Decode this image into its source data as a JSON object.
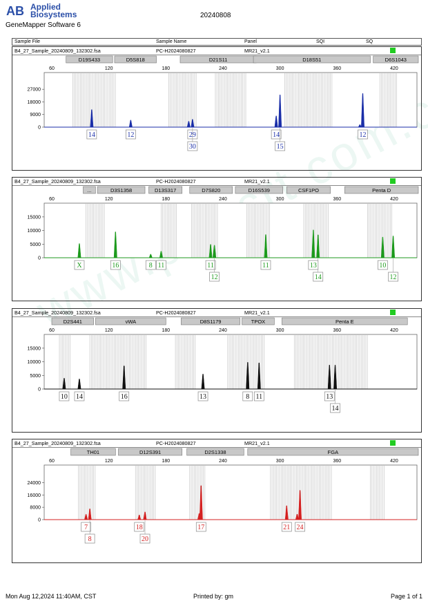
{
  "brand": {
    "logo_text": "AB",
    "name_line1": "Applied",
    "name_line2": "Biosystems",
    "software": "GeneMapper Software 6"
  },
  "run_date": "20240808",
  "columns": {
    "sample_file": "Sample File",
    "sample_name": "Sample Name",
    "panel": "Panel",
    "sqi": "SQI",
    "sq": "SQ"
  },
  "watermark": "www.pro-crt.com.cn",
  "footer": {
    "date": "Mon Aug 12,2024 11:40AM, CST",
    "printed_by": "Printed by: gm",
    "page": "Page 1 of 1"
  },
  "colors": {
    "blue": "#1a2ea8",
    "green": "#1c9a1c",
    "black": "#111111",
    "red": "#d42020",
    "sq_box": "#22cc22"
  },
  "chart_data": [
    {
      "type": "line",
      "info": {
        "sample_file": "B4_27_Sample_20240809_132302.fsa",
        "sample_name": "PC-H2024080827",
        "panel": "MR21_v2.1"
      },
      "dye": "blue",
      "xlim": [
        52,
        444
      ],
      "xticks": [
        "60",
        "120",
        "180",
        "240",
        "300",
        "360",
        "420"
      ],
      "ylim": [
        0,
        33000
      ],
      "yticks": [
        "0",
        "9000",
        "18000",
        "27000"
      ],
      "markers": [
        {
          "label": "D19S433",
          "x1": 75,
          "x2": 124
        },
        {
          "label": "D5S818",
          "x1": 126,
          "x2": 170
        },
        {
          "label": "D21S11",
          "x1": 195,
          "x2": 275
        },
        {
          "label": "D18S51",
          "x1": 272,
          "x2": 395
        },
        {
          "label": "D6S1043",
          "x1": 398,
          "x2": 454
        }
      ],
      "bins": [
        [
          82,
          127
        ],
        [
          183,
          212
        ],
        [
          232,
          265
        ],
        [
          305,
          355
        ],
        [
          405,
          424
        ]
      ],
      "peaks": [
        {
          "x": 102,
          "y": 12500
        },
        {
          "x": 143,
          "y": 5000
        },
        {
          "x": 204,
          "y": 4200
        },
        {
          "x": 208,
          "y": 5600
        },
        {
          "x": 296,
          "y": 8000
        },
        {
          "x": 300,
          "y": 23000
        },
        {
          "x": 387,
          "y": 24000
        },
        {
          "x": 384,
          "y": 1800
        }
      ],
      "alleles": [
        {
          "text": "14",
          "x": 102,
          "row": 0
        },
        {
          "text": "12",
          "x": 143,
          "row": 0
        },
        {
          "text": "29",
          "x": 208,
          "row": 0
        },
        {
          "text": "30",
          "x": 208,
          "row": 1
        },
        {
          "text": "14",
          "x": 296,
          "row": 0
        },
        {
          "text": "15",
          "x": 300,
          "row": 1
        },
        {
          "text": "12",
          "x": 387,
          "row": 0
        }
      ]
    },
    {
      "type": "line",
      "info": {
        "sample_file": "B4_27_Sample_20240809_132302.fsa",
        "sample_name": "PC-H2024080827",
        "panel": "MR21_v2.1"
      },
      "dye": "green",
      "xlim": [
        52,
        444
      ],
      "xticks": [
        "60",
        "120",
        "180",
        "240",
        "300",
        "360",
        "420"
      ],
      "ylim": [
        0,
        17000
      ],
      "yticks": [
        "0",
        "5000",
        "10000",
        "15000"
      ],
      "markers": [
        {
          "label": "...",
          "x1": 93,
          "x2": 106
        },
        {
          "label": "D3S1358",
          "x1": 108,
          "x2": 158
        },
        {
          "label": "D13S317",
          "x1": 162,
          "x2": 197
        },
        {
          "label": "D7S820",
          "x1": 205,
          "x2": 250
        },
        {
          "label": "D16S539",
          "x1": 253,
          "x2": 303
        },
        {
          "label": "CSF1PO",
          "x1": 307,
          "x2": 353
        },
        {
          "label": "Penta D",
          "x1": 368,
          "x2": 454
        }
      ],
      "bins": [
        [
          96,
          116
        ],
        [
          175,
          192
        ],
        [
          207,
          235
        ],
        [
          265,
          290
        ],
        [
          325,
          352
        ],
        [
          392,
          418
        ]
      ],
      "peaks": [
        {
          "x": 89,
          "y": 5200
        },
        {
          "x": 127,
          "y": 9500
        },
        {
          "x": 164,
          "y": 1300
        },
        {
          "x": 175,
          "y": 2400
        },
        {
          "x": 227,
          "y": 4900
        },
        {
          "x": 231,
          "y": 4600
        },
        {
          "x": 285,
          "y": 8500
        },
        {
          "x": 335,
          "y": 10200
        },
        {
          "x": 340,
          "y": 8400
        },
        {
          "x": 408,
          "y": 7600
        },
        {
          "x": 419,
          "y": 8000
        }
      ],
      "alleles": [
        {
          "text": "X",
          "x": 89,
          "row": 0
        },
        {
          "text": "16",
          "x": 127,
          "row": 0
        },
        {
          "text": "8",
          "x": 164,
          "row": 0
        },
        {
          "text": "11",
          "x": 175,
          "row": 0
        },
        {
          "text": "11",
          "x": 227,
          "row": 0
        },
        {
          "text": "12",
          "x": 231,
          "row": 1
        },
        {
          "text": "11",
          "x": 285,
          "row": 0
        },
        {
          "text": "13",
          "x": 335,
          "row": 0
        },
        {
          "text": "14",
          "x": 340,
          "row": 1
        },
        {
          "text": "10",
          "x": 408,
          "row": 0
        },
        {
          "text": "12",
          "x": 419,
          "row": 1
        }
      ]
    },
    {
      "type": "line",
      "info": {
        "sample_file": "B4_27_Sample_20240809_132302.fsa",
        "sample_name": "PC-H2024080827",
        "panel": "MR21_v2.1"
      },
      "dye": "black",
      "xlim": [
        52,
        444
      ],
      "xticks": [
        "60",
        "120",
        "180",
        "240",
        "300",
        "360",
        "420"
      ],
      "ylim": [
        0,
        17000
      ],
      "yticks": [
        "0",
        "5000",
        "10000",
        "15000"
      ],
      "markers": [
        {
          "label": "D2S441",
          "x1": 60,
          "x2": 104
        },
        {
          "label": "vWA",
          "x1": 106,
          "x2": 180
        },
        {
          "label": "D8S1179",
          "x1": 196,
          "x2": 258
        },
        {
          "label": "TPOX",
          "x1": 260,
          "x2": 294
        },
        {
          "label": "Penta E",
          "x1": 302,
          "x2": 434
        }
      ],
      "bins": [
        [
          68,
          80
        ],
        [
          100,
          160
        ],
        [
          190,
          212
        ],
        [
          245,
          285
        ],
        [
          315,
          392
        ]
      ],
      "peaks": [
        {
          "x": 73,
          "y": 4000
        },
        {
          "x": 89,
          "y": 3700
        },
        {
          "x": 136,
          "y": 8500
        },
        {
          "x": 219,
          "y": 5500
        },
        {
          "x": 266,
          "y": 9800
        },
        {
          "x": 278,
          "y": 9600
        },
        {
          "x": 352,
          "y": 8800
        },
        {
          "x": 358,
          "y": 8800
        }
      ],
      "alleles": [
        {
          "text": "10",
          "x": 73,
          "row": 0
        },
        {
          "text": "14",
          "x": 89,
          "row": 0
        },
        {
          "text": "16",
          "x": 136,
          "row": 0
        },
        {
          "text": "13",
          "x": 219,
          "row": 0
        },
        {
          "text": "8",
          "x": 266,
          "row": 0
        },
        {
          "text": "11",
          "x": 278,
          "row": 0
        },
        {
          "text": "13",
          "x": 352,
          "row": 0
        },
        {
          "text": "14",
          "x": 358,
          "row": 1
        }
      ]
    },
    {
      "type": "line",
      "info": {
        "sample_file": "B4_27_Sample_20240809_132302.fsa",
        "sample_name": "PC-H2024080827",
        "panel": "MR21_v2.1"
      },
      "dye": "red",
      "xlim": [
        52,
        444
      ],
      "xticks": [
        "60",
        "120",
        "180",
        "240",
        "300",
        "360",
        "420"
      ],
      "ylim": [
        0,
        30000
      ],
      "yticks": [
        "0",
        "8000",
        "16000",
        "24000"
      ],
      "markers": [
        {
          "label": "TH01",
          "x1": 80,
          "x2": 127
        },
        {
          "label": "D12S391",
          "x1": 130,
          "x2": 197
        },
        {
          "label": "D2S1338",
          "x1": 202,
          "x2": 262
        },
        {
          "label": "FGA",
          "x1": 266,
          "x2": 466
        }
      ],
      "bins": [
        [
          88,
          106
        ],
        [
          148,
          170
        ],
        [
          205,
          222
        ],
        [
          290,
          355
        ],
        [
          395,
          410
        ]
      ],
      "peaks": [
        {
          "x": 96,
          "y": 3500
        },
        {
          "x": 100,
          "y": 7000
        },
        {
          "x": 152,
          "y": 3000
        },
        {
          "x": 158,
          "y": 5000
        },
        {
          "x": 217,
          "y": 22000
        },
        {
          "x": 215,
          "y": 4000
        },
        {
          "x": 307,
          "y": 9000
        },
        {
          "x": 318,
          "y": 3500
        },
        {
          "x": 321,
          "y": 19000
        }
      ],
      "alleles": [
        {
          "text": "7",
          "x": 96,
          "row": 0
        },
        {
          "text": "8",
          "x": 100,
          "row": 1
        },
        {
          "text": "18",
          "x": 152,
          "row": 0
        },
        {
          "text": "20",
          "x": 158,
          "row": 1
        },
        {
          "text": "17",
          "x": 217,
          "row": 0
        },
        {
          "text": "21",
          "x": 307,
          "row": 0
        },
        {
          "text": "24",
          "x": 321,
          "row": 0
        }
      ]
    }
  ]
}
